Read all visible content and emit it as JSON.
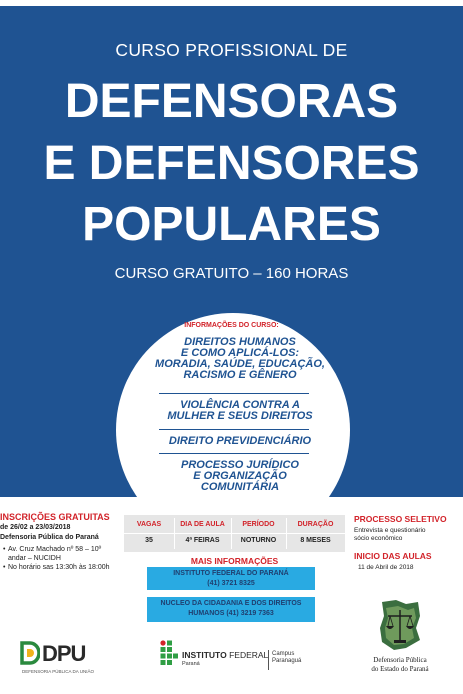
{
  "header": {
    "prefix": "CURSO PROFISSIONAL DE",
    "title_line1": "DEFENSORAS",
    "title_line2": "E DEFENSORES",
    "title_line3": "POPULARES",
    "subtitle": "CURSO GRATUITO – 160 HORAS"
  },
  "info_circle": {
    "title": "INFORMAÇÕES DO CURSO:",
    "topics": [
      {
        "line1": "DIREITOS  HUMANOS",
        "line2": "E COMO APLICÁ-LOS:",
        "line3": "MORADIA, SAÚDE, EDUCAÇÃO,",
        "line4": "RACISMO E GÊNERO"
      },
      {
        "line1": "VIOLÊNCIA CONTRA A",
        "line2": "MULHER E SEUS DIREITOS"
      },
      {
        "line1": "DIREITO PREVIDENCIÁRIO"
      },
      {
        "line1": "PROCESSO JURÍDICO",
        "line2": "E ORGANIZAÇÃO",
        "line3": "COMUNITÁRIA"
      }
    ]
  },
  "inscricoes": {
    "title": "INSCRIÇÕES GRATUITAS",
    "dates": "de 26/02 a 23/03/2018",
    "place": "Defensoria Pública do Paraná",
    "bullets": [
      "Av. Cruz Machado nº 58 – 10º andar – NUCIDH",
      "No horário sas 13:30h às 18:00h"
    ]
  },
  "details_table": {
    "headers": [
      "VAGAS",
      "DIA DE AULA",
      "PERÍODO",
      "DURAÇÃO"
    ],
    "values": [
      "35",
      "4ª FEIRAS",
      "NOTURNO",
      "8 MESES"
    ]
  },
  "more_info": {
    "title": "MAIS INFORMAÇÕES",
    "box1_line1": "INSTITUTO FEDERAL DO PARANÁ",
    "box1_line2": "(41) 3721 8325",
    "box2_line1": "NUCLEO DA CIDADANIA E DOS DIREITOS",
    "box2_line2": "HUMANOS  (41) 3219 7363"
  },
  "processo": {
    "title": "PROCESSO SELETIVO",
    "text1": "Entrevista e questionário",
    "text2": "sócio econômico"
  },
  "inicio": {
    "title": "INICIO DAS AULAS",
    "date": "11 de Abril de 2018"
  },
  "logos": {
    "dpu_text": "DPU",
    "dpu_caption": "DEFENSORIA PÚBLICA DA UNIÃO",
    "if_bold": "INSTITUTO",
    "if_rest": " FEDERAL",
    "if_sub": "Paraná",
    "if_campus1": "Campus",
    "if_campus2": "Paranaguá",
    "dpe_line1": "Defensoria Pública",
    "dpe_line2": "do Estado do Paraná"
  },
  "colors": {
    "primary_blue": "#1f5392",
    "accent_red": "#d2232a",
    "info_box_blue": "#29aae2",
    "table_gray": "#e6e6e6"
  }
}
